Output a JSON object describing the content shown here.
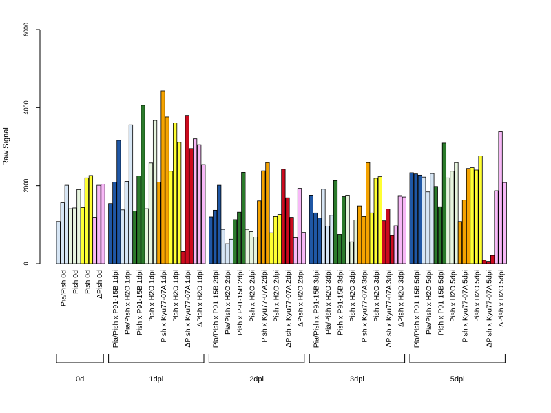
{
  "chart_data": {
    "type": "bar",
    "ylabel": "Raw Signal",
    "ylim": [
      0,
      6000
    ],
    "yticks": [
      0,
      2000,
      4000,
      6000
    ],
    "grid": false,
    "legend": "none",
    "colors": {
      "blue": "#1f57a5",
      "lightblue": "#d7e6f5",
      "green": "#2b7a2b",
      "lightgreen": "#e7f5df",
      "orange": "#f5a300",
      "yellow": "#ffff33",
      "red": "#cc0a1e",
      "pink": "#f7b8f7"
    },
    "groups": [
      {
        "label": "0d",
        "categories": [
          {
            "label": "Pia/Pish 0d",
            "color": "lightblue",
            "values": [
              1080,
              1560,
              2010
            ]
          },
          {
            "label": "Pish 0d",
            "color": "lightgreen",
            "values": [
              1410,
              1430,
              1900
            ]
          },
          {
            "label": "Pish 0d",
            "color": "yellow",
            "values": [
              1440,
              2200,
              2260
            ]
          },
          {
            "label": "ΔPish 0d",
            "color": "pink",
            "values": [
              1190,
              2010,
              2040
            ]
          }
        ]
      },
      {
        "label": "1dpi",
        "categories": [
          {
            "label": "Pia/Pish x P91-15B 1dpi",
            "color": "blue",
            "values": [
              1540,
              2090,
              3160
            ]
          },
          {
            "label": "Pia/Pish x H2O 1dpi",
            "color": "lightblue",
            "values": [
              1380,
              2110,
              3560
            ]
          },
          {
            "label": "Pish x P91-15B 1dpi",
            "color": "green",
            "values": [
              1350,
              2250,
              4060
            ]
          },
          {
            "label": "Pish x H2O 1dpi",
            "color": "lightgreen",
            "values": [
              1410,
              2580,
              3670
            ]
          },
          {
            "label": "Pish x Kyu77-07A 1dpi",
            "color": "orange",
            "values": [
              2090,
              4430,
              3760
            ]
          },
          {
            "label": "Pish x H2O 1dpi",
            "color": "yellow",
            "values": [
              2370,
              3610,
              3110
            ]
          },
          {
            "label": "ΔPish x Kyu77-07A 1dpi",
            "color": "red",
            "values": [
              310,
              3800,
              2950
            ]
          },
          {
            "label": "ΔPish x H2O 1dpi",
            "color": "pink",
            "values": [
              3200,
              3050,
              2540
            ]
          }
        ]
      },
      {
        "label": "2dpi",
        "categories": [
          {
            "label": "Pia/Pish x P91-15B 2dpi",
            "color": "blue",
            "values": [
              1200,
              1370,
              2010
            ]
          },
          {
            "label": "Pia/Pish x H2O 2dpi",
            "color": "lightblue",
            "values": [
              880,
              510,
              630
            ]
          },
          {
            "label": "Pish x P91-15B 2dpi",
            "color": "green",
            "values": [
              1130,
              1320,
              2340
            ]
          },
          {
            "label": "Pish x H2O 2dpi",
            "color": "lightgreen",
            "values": [
              880,
              820,
              680
            ]
          },
          {
            "label": "Pish x Kyu77-07A 2dpi",
            "color": "orange",
            "values": [
              1610,
              2380,
              2590
            ]
          },
          {
            "label": "Pish x H2O 2dpi",
            "color": "yellow",
            "values": [
              790,
              1210,
              1260
            ]
          },
          {
            "label": "ΔPish x Kyu77-07A 2dpi",
            "color": "red",
            "values": [
              2420,
              1690,
              1190
            ]
          },
          {
            "label": "ΔPish x H2O 2dpi",
            "color": "pink",
            "values": [
              660,
              1930,
              800
            ]
          }
        ]
      },
      {
        "label": "3dpi",
        "categories": [
          {
            "label": "Pia/Pish x P91-15B 3dpi",
            "color": "blue",
            "values": [
              1740,
              1300,
              1170
            ]
          },
          {
            "label": "Pia/Pish x H2O 3dpi",
            "color": "lightblue",
            "values": [
              1910,
              960,
              1240
            ]
          },
          {
            "label": "Pish x P91-15B 3dpi",
            "color": "green",
            "values": [
              2130,
              750,
              1720
            ]
          },
          {
            "label": "Pish x H2O 3dpi",
            "color": "lightgreen",
            "values": [
              1740,
              560,
              1120
            ]
          },
          {
            "label": "Pish x Kyu77-07A 3dpi",
            "color": "orange",
            "values": [
              1480,
              1210,
              2590
            ]
          },
          {
            "label": "Pish x H2O 3dpi",
            "color": "yellow",
            "values": [
              1300,
              2190,
              2230
            ]
          },
          {
            "label": "ΔPish x Kyu77-07A 3dpi",
            "color": "red",
            "values": [
              1100,
              1400,
              720
            ]
          },
          {
            "label": "ΔPish x H2O 3dpi",
            "color": "pink",
            "values": [
              970,
              1730,
              1710
            ]
          }
        ]
      },
      {
        "label": "5dpi",
        "categories": [
          {
            "label": "Pia/Pish x P91-15B 5dpi",
            "color": "blue",
            "values": [
              2330,
              2300,
              2270
            ]
          },
          {
            "label": "Pia/Pish x H2O 5dpi",
            "color": "lightblue",
            "values": [
              2220,
              1840,
              2310
            ]
          },
          {
            "label": "Pish x P91-15B 5dpi",
            "color": "green",
            "values": [
              1980,
              1460,
              3090
            ]
          },
          {
            "label": "Pish x H2O 5dpi",
            "color": "lightgreen",
            "values": [
              2200,
              2370,
              2590
            ]
          },
          {
            "label": "Pish x Kyu77-07A 5dpi",
            "color": "orange",
            "values": [
              1080,
              1630,
              2440
            ]
          },
          {
            "label": "Pish x H2O 5dpi",
            "color": "yellow",
            "values": [
              2460,
              2400,
              2760
            ]
          },
          {
            "label": "ΔPish x Kyu77-07A 5dpi",
            "color": "red",
            "values": [
              90,
              60,
              210
            ]
          },
          {
            "label": "ΔPish x H2O 5dpi",
            "color": "pink",
            "values": [
              1870,
              3380,
              2080
            ]
          }
        ]
      }
    ]
  }
}
